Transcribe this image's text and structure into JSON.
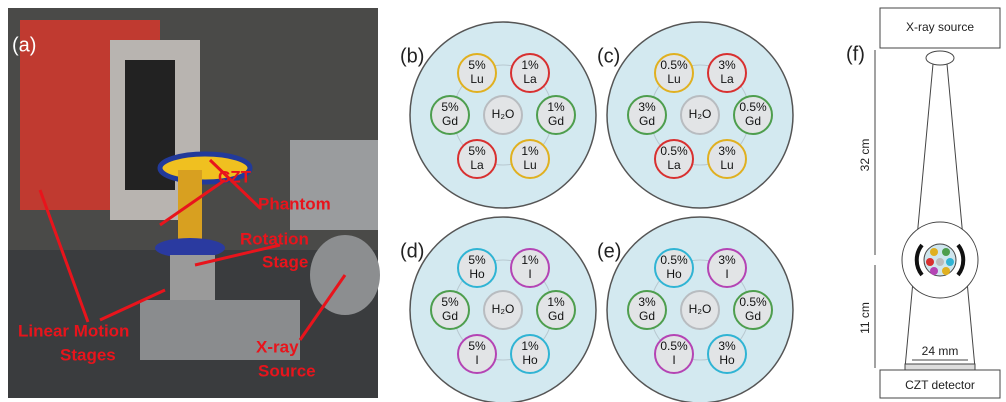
{
  "photo": {
    "label": "(a)",
    "annotations": [
      "CZT",
      "Phantom",
      "Rotation",
      "Stage",
      "Linear Motion",
      "Stages",
      "X-ray",
      "Source"
    ]
  },
  "phantoms": [
    {
      "label": "(b)",
      "inserts": [
        {
          "amount": "5%",
          "element": "Lu",
          "color": "#e0b020"
        },
        {
          "amount": "1%",
          "element": "La",
          "color": "#d83030"
        },
        {
          "amount": "5%",
          "element": "Gd",
          "color": "#4e9e4e"
        },
        {
          "element": "H₂O",
          "color": "#b8bcc0"
        },
        {
          "amount": "1%",
          "element": "Gd",
          "color": "#4e9e4e"
        },
        {
          "amount": "5%",
          "element": "La",
          "color": "#d83030"
        },
        {
          "amount": "1%",
          "element": "Lu",
          "color": "#e0b020"
        }
      ]
    },
    {
      "label": "(c)",
      "inserts": [
        {
          "amount": "0.5%",
          "element": "Lu",
          "color": "#e0b020"
        },
        {
          "amount": "3%",
          "element": "La",
          "color": "#d83030"
        },
        {
          "amount": "3%",
          "element": "Gd",
          "color": "#4e9e4e"
        },
        {
          "element": "H₂O",
          "color": "#b8bcc0"
        },
        {
          "amount": "0.5%",
          "element": "Gd",
          "color": "#4e9e4e"
        },
        {
          "amount": "0.5%",
          "element": "La",
          "color": "#d83030"
        },
        {
          "amount": "3%",
          "element": "Lu",
          "color": "#e0b020"
        }
      ]
    },
    {
      "label": "(d)",
      "inserts": [
        {
          "amount": "5%",
          "element": "Ho",
          "color": "#30b4d4"
        },
        {
          "amount": "1%",
          "element": "I",
          "color": "#b444b4"
        },
        {
          "amount": "5%",
          "element": "Gd",
          "color": "#4e9e4e"
        },
        {
          "element": "H₂O",
          "color": "#b8bcc0"
        },
        {
          "amount": "1%",
          "element": "Gd",
          "color": "#4e9e4e"
        },
        {
          "amount": "5%",
          "element": "I",
          "color": "#b444b4"
        },
        {
          "amount": "1%",
          "element": "Ho",
          "color": "#30b4d4"
        }
      ]
    },
    {
      "label": "(e)",
      "inserts": [
        {
          "amount": "0.5%",
          "element": "Ho",
          "color": "#30b4d4"
        },
        {
          "amount": "3%",
          "element": "I",
          "color": "#b444b4"
        },
        {
          "amount": "3%",
          "element": "Gd",
          "color": "#4e9e4e"
        },
        {
          "element": "H₂O",
          "color": "#b8bcc0"
        },
        {
          "amount": "0.5%",
          "element": "Gd",
          "color": "#4e9e4e"
        },
        {
          "amount": "0.5%",
          "element": "I",
          "color": "#b444b4"
        },
        {
          "amount": "3%",
          "element": "Ho",
          "color": "#30b4d4"
        }
      ]
    }
  ],
  "schematic": {
    "label": "(f)",
    "source": "X-ray source",
    "detector": "CZT detector",
    "distance_top": "32 cm",
    "distance_bottom": "11 cm",
    "width": "24 mm"
  }
}
